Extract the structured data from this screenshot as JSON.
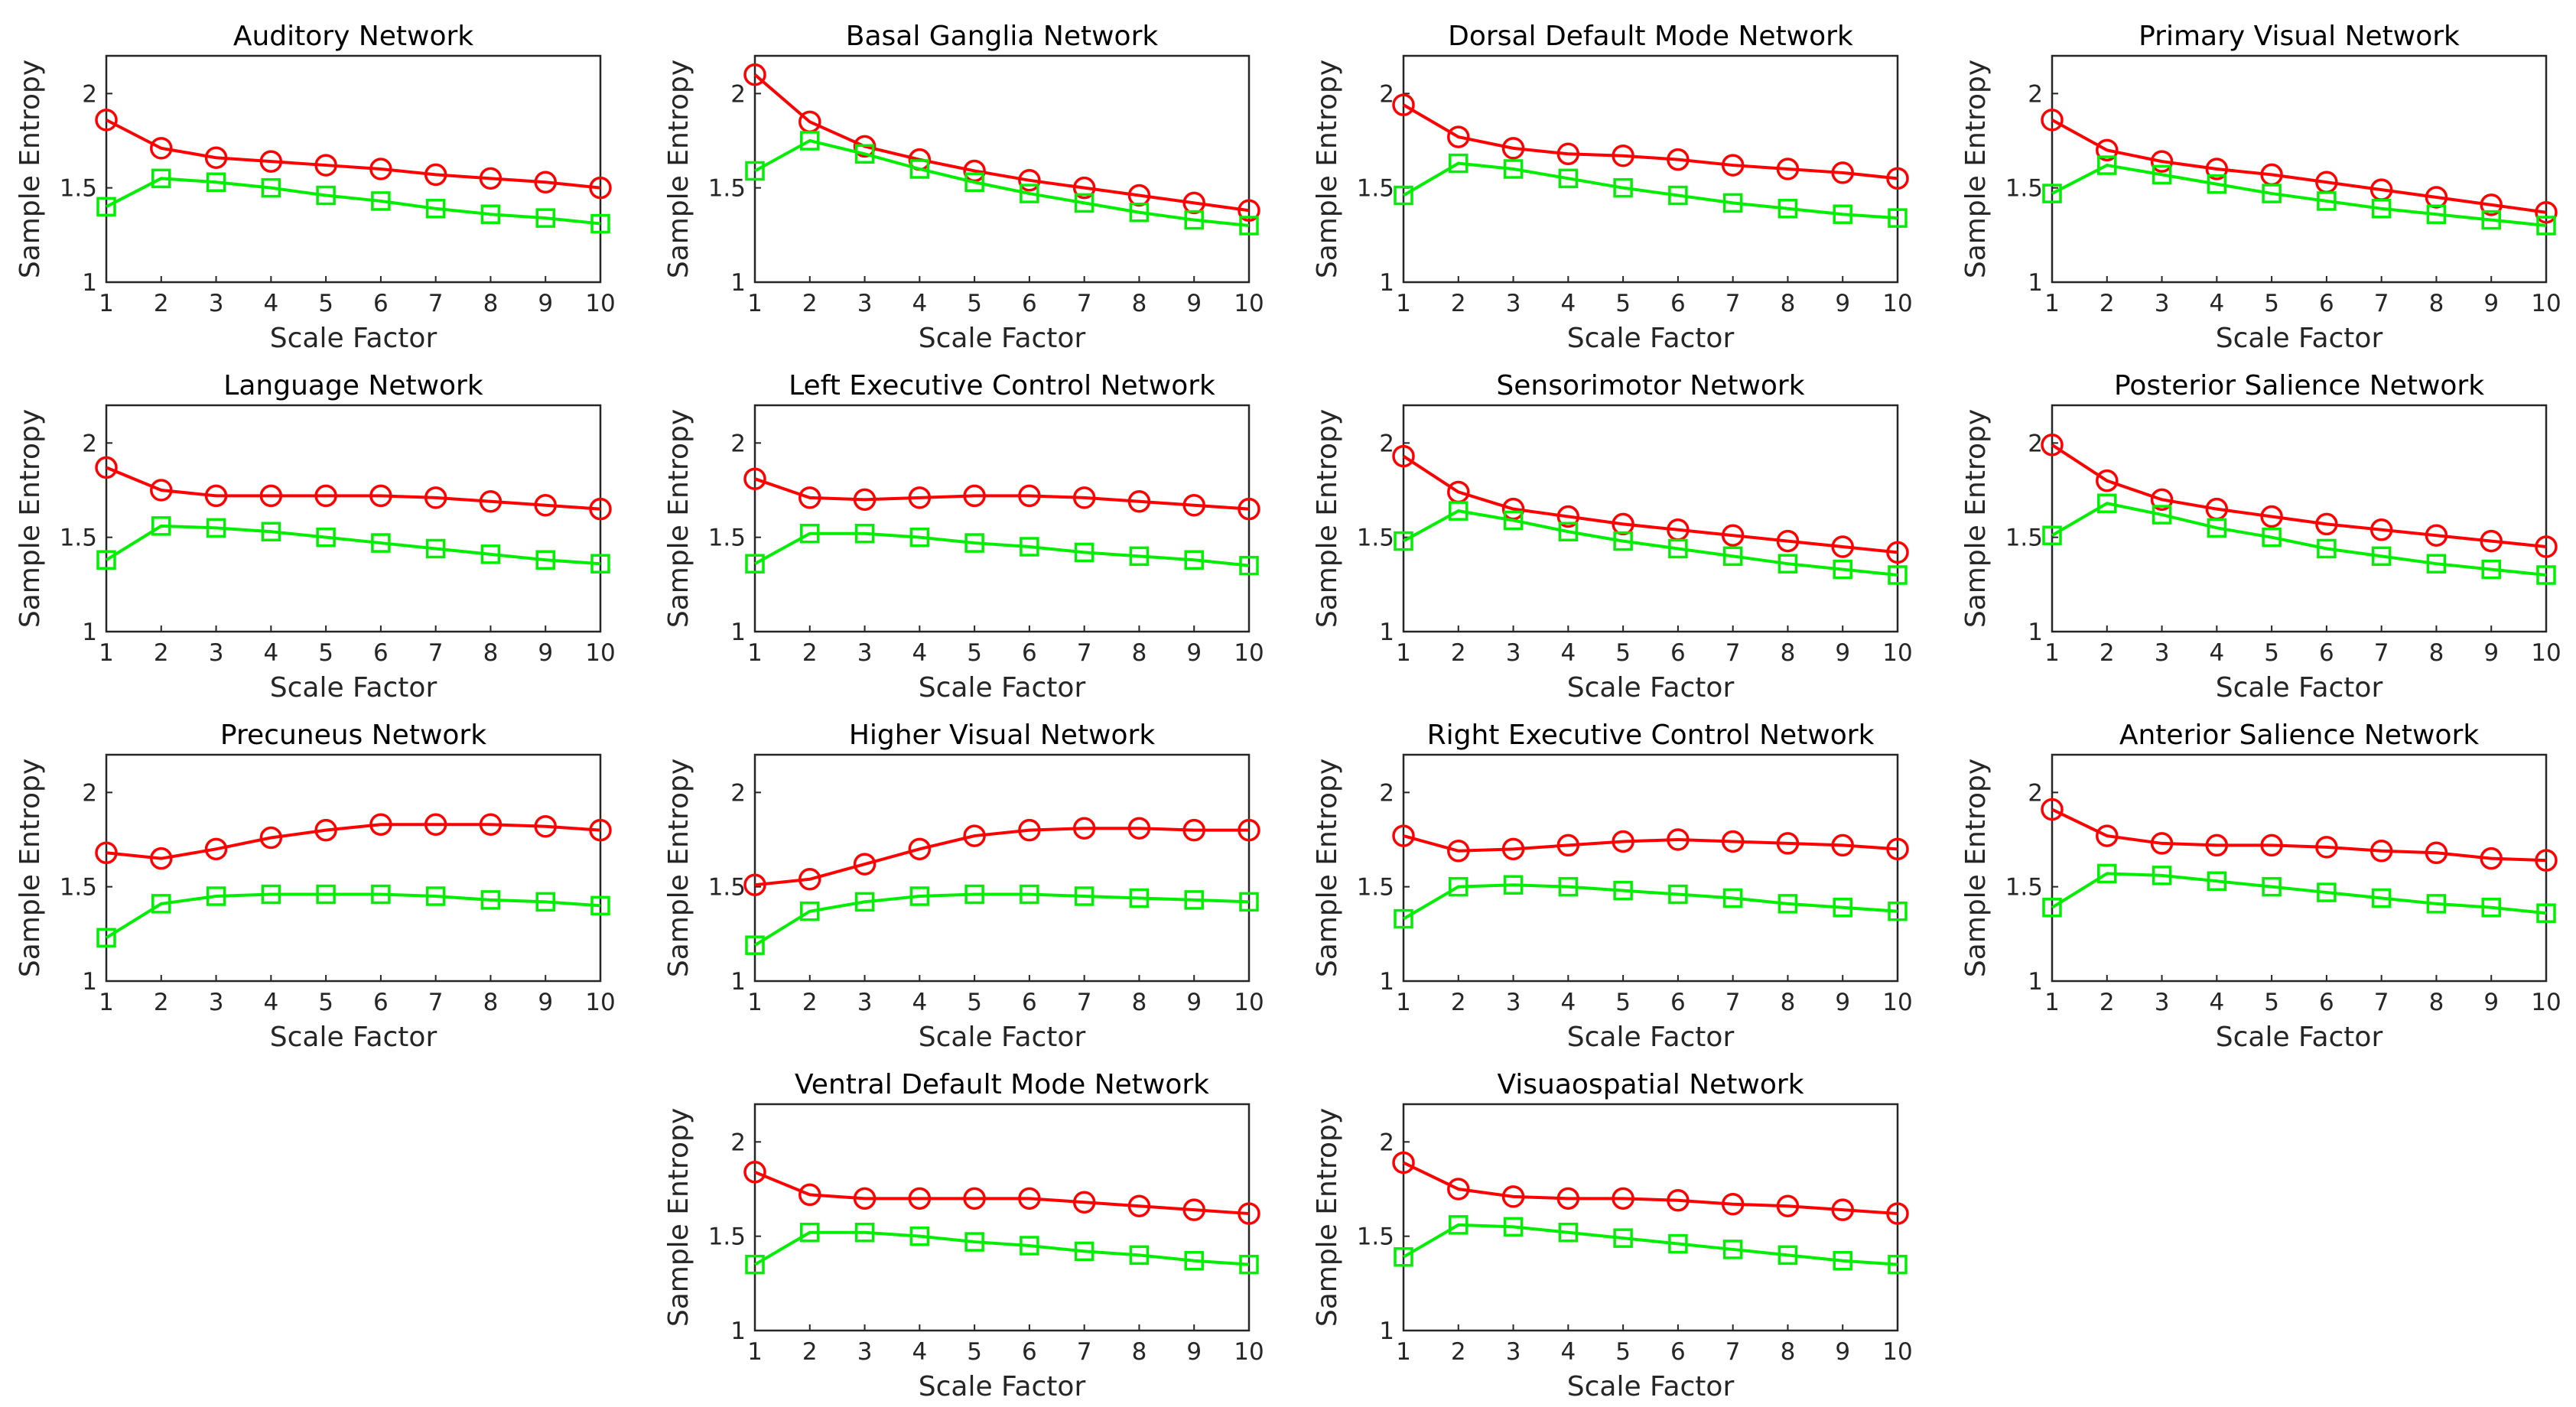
{
  "chart_data": [
    {
      "type": "line",
      "title": "Auditory Network",
      "xlabel": "Scale Factor",
      "ylabel": "Sample Entropy",
      "x": [
        1,
        2,
        3,
        4,
        5,
        6,
        7,
        8,
        9,
        10
      ],
      "xlim": [
        1,
        10
      ],
      "ylim": [
        1,
        2.2
      ],
      "yticks": [
        1,
        1.5,
        2
      ],
      "series": [
        {
          "name": "red circles",
          "color": "#ff0000",
          "marker": "circle",
          "values": [
            1.86,
            1.71,
            1.66,
            1.64,
            1.62,
            1.6,
            1.57,
            1.55,
            1.53,
            1.5
          ]
        },
        {
          "name": "green squares",
          "color": "#00ee00",
          "marker": "square",
          "values": [
            1.4,
            1.55,
            1.53,
            1.5,
            1.46,
            1.43,
            1.39,
            1.36,
            1.34,
            1.31
          ]
        }
      ]
    },
    {
      "type": "line",
      "title": "Basal Ganglia Network",
      "xlabel": "Scale Factor",
      "ylabel": "Sample Entropy",
      "x": [
        1,
        2,
        3,
        4,
        5,
        6,
        7,
        8,
        9,
        10
      ],
      "xlim": [
        1,
        10
      ],
      "ylim": [
        1,
        2.2
      ],
      "yticks": [
        1,
        1.5,
        2
      ],
      "series": [
        {
          "name": "red circles",
          "color": "#ff0000",
          "marker": "circle",
          "values": [
            2.1,
            1.85,
            1.72,
            1.65,
            1.59,
            1.54,
            1.5,
            1.46,
            1.42,
            1.38
          ]
        },
        {
          "name": "green squares",
          "color": "#00ee00",
          "marker": "square",
          "values": [
            1.59,
            1.75,
            1.68,
            1.6,
            1.53,
            1.47,
            1.42,
            1.37,
            1.33,
            1.3
          ]
        }
      ]
    },
    {
      "type": "line",
      "title": "Dorsal Default Mode Network",
      "xlabel": "Scale Factor",
      "ylabel": "Sample Entropy",
      "x": [
        1,
        2,
        3,
        4,
        5,
        6,
        7,
        8,
        9,
        10
      ],
      "xlim": [
        1,
        10
      ],
      "ylim": [
        1,
        2.2
      ],
      "yticks": [
        1,
        1.5,
        2
      ],
      "series": [
        {
          "name": "red circles",
          "color": "#ff0000",
          "marker": "circle",
          "values": [
            1.94,
            1.77,
            1.71,
            1.68,
            1.67,
            1.65,
            1.62,
            1.6,
            1.58,
            1.55
          ]
        },
        {
          "name": "green squares",
          "color": "#00ee00",
          "marker": "square",
          "values": [
            1.46,
            1.63,
            1.6,
            1.55,
            1.5,
            1.46,
            1.42,
            1.39,
            1.36,
            1.34
          ]
        }
      ]
    },
    {
      "type": "line",
      "title": "Primary Visual Network",
      "xlabel": "Scale Factor",
      "ylabel": "Sample Entropy",
      "x": [
        1,
        2,
        3,
        4,
        5,
        6,
        7,
        8,
        9,
        10
      ],
      "xlim": [
        1,
        10
      ],
      "ylim": [
        1,
        2.2
      ],
      "yticks": [
        1,
        1.5,
        2
      ],
      "series": [
        {
          "name": "red circles",
          "color": "#ff0000",
          "marker": "circle",
          "values": [
            1.86,
            1.7,
            1.64,
            1.6,
            1.57,
            1.53,
            1.49,
            1.45,
            1.41,
            1.37
          ]
        },
        {
          "name": "green squares",
          "color": "#00ee00",
          "marker": "square",
          "values": [
            1.47,
            1.62,
            1.57,
            1.52,
            1.47,
            1.43,
            1.39,
            1.36,
            1.33,
            1.3
          ]
        }
      ]
    },
    {
      "type": "line",
      "title": "Language Network",
      "xlabel": "Scale Factor",
      "ylabel": "Sample Entropy",
      "x": [
        1,
        2,
        3,
        4,
        5,
        6,
        7,
        8,
        9,
        10
      ],
      "xlim": [
        1,
        10
      ],
      "ylim": [
        1,
        2.2
      ],
      "yticks": [
        1,
        1.5,
        2
      ],
      "series": [
        {
          "name": "red circles",
          "color": "#ff0000",
          "marker": "circle",
          "values": [
            1.87,
            1.75,
            1.72,
            1.72,
            1.72,
            1.72,
            1.71,
            1.69,
            1.67,
            1.65
          ]
        },
        {
          "name": "green squares",
          "color": "#00ee00",
          "marker": "square",
          "values": [
            1.38,
            1.56,
            1.55,
            1.53,
            1.5,
            1.47,
            1.44,
            1.41,
            1.38,
            1.36
          ]
        }
      ]
    },
    {
      "type": "line",
      "title": "Left Executive Control Network",
      "xlabel": "Scale Factor",
      "ylabel": "Sample Entropy",
      "x": [
        1,
        2,
        3,
        4,
        5,
        6,
        7,
        8,
        9,
        10
      ],
      "xlim": [
        1,
        10
      ],
      "ylim": [
        1,
        2.2
      ],
      "yticks": [
        1,
        1.5,
        2
      ],
      "series": [
        {
          "name": "red circles",
          "color": "#ff0000",
          "marker": "circle",
          "values": [
            1.81,
            1.71,
            1.7,
            1.71,
            1.72,
            1.72,
            1.71,
            1.69,
            1.67,
            1.65
          ]
        },
        {
          "name": "green squares",
          "color": "#00ee00",
          "marker": "square",
          "values": [
            1.36,
            1.52,
            1.52,
            1.5,
            1.47,
            1.45,
            1.42,
            1.4,
            1.38,
            1.35
          ]
        }
      ]
    },
    {
      "type": "line",
      "title": "Sensorimotor Network",
      "xlabel": "Scale Factor",
      "ylabel": "Sample Entropy",
      "x": [
        1,
        2,
        3,
        4,
        5,
        6,
        7,
        8,
        9,
        10
      ],
      "xlim": [
        1,
        10
      ],
      "ylim": [
        1,
        2.2
      ],
      "yticks": [
        1,
        1.5,
        2
      ],
      "series": [
        {
          "name": "red circles",
          "color": "#ff0000",
          "marker": "circle",
          "values": [
            1.93,
            1.74,
            1.65,
            1.61,
            1.57,
            1.54,
            1.51,
            1.48,
            1.45,
            1.42
          ]
        },
        {
          "name": "green squares",
          "color": "#00ee00",
          "marker": "square",
          "values": [
            1.48,
            1.64,
            1.59,
            1.53,
            1.48,
            1.44,
            1.4,
            1.36,
            1.33,
            1.3
          ]
        }
      ]
    },
    {
      "type": "line",
      "title": "Posterior Salience Network",
      "xlabel": "Scale Factor",
      "ylabel": "Sample Entropy",
      "x": [
        1,
        2,
        3,
        4,
        5,
        6,
        7,
        8,
        9,
        10
      ],
      "xlim": [
        1,
        10
      ],
      "ylim": [
        1,
        2.2
      ],
      "yticks": [
        1,
        1.5,
        2
      ],
      "series": [
        {
          "name": "red circles",
          "color": "#ff0000",
          "marker": "circle",
          "values": [
            1.99,
            1.8,
            1.7,
            1.65,
            1.61,
            1.57,
            1.54,
            1.51,
            1.48,
            1.45
          ]
        },
        {
          "name": "green squares",
          "color": "#00ee00",
          "marker": "square",
          "values": [
            1.51,
            1.68,
            1.62,
            1.55,
            1.5,
            1.44,
            1.4,
            1.36,
            1.33,
            1.3
          ]
        }
      ]
    },
    {
      "type": "line",
      "title": "Precuneus Network",
      "xlabel": "Scale Factor",
      "ylabel": "Sample Entropy",
      "x": [
        1,
        2,
        3,
        4,
        5,
        6,
        7,
        8,
        9,
        10
      ],
      "xlim": [
        1,
        10
      ],
      "ylim": [
        1,
        2.2
      ],
      "yticks": [
        1,
        1.5,
        2
      ],
      "series": [
        {
          "name": "red circles",
          "color": "#ff0000",
          "marker": "circle",
          "values": [
            1.68,
            1.65,
            1.7,
            1.76,
            1.8,
            1.83,
            1.83,
            1.83,
            1.82,
            1.8
          ]
        },
        {
          "name": "green squares",
          "color": "#00ee00",
          "marker": "square",
          "values": [
            1.23,
            1.41,
            1.45,
            1.46,
            1.46,
            1.46,
            1.45,
            1.43,
            1.42,
            1.4
          ]
        }
      ]
    },
    {
      "type": "line",
      "title": "Higher Visual Network",
      "xlabel": "Scale Factor",
      "ylabel": "Sample Entropy",
      "x": [
        1,
        2,
        3,
        4,
        5,
        6,
        7,
        8,
        9,
        10
      ],
      "xlim": [
        1,
        10
      ],
      "ylim": [
        1,
        2.2
      ],
      "yticks": [
        1,
        1.5,
        2
      ],
      "series": [
        {
          "name": "red circles",
          "color": "#ff0000",
          "marker": "circle",
          "values": [
            1.51,
            1.54,
            1.62,
            1.7,
            1.77,
            1.8,
            1.81,
            1.81,
            1.8,
            1.8
          ]
        },
        {
          "name": "green squares",
          "color": "#00ee00",
          "marker": "square",
          "values": [
            1.19,
            1.37,
            1.42,
            1.45,
            1.46,
            1.46,
            1.45,
            1.44,
            1.43,
            1.42
          ]
        }
      ]
    },
    {
      "type": "line",
      "title": "Right Executive Control Network",
      "xlabel": "Scale Factor",
      "ylabel": "Sample Entropy",
      "x": [
        1,
        2,
        3,
        4,
        5,
        6,
        7,
        8,
        9,
        10
      ],
      "xlim": [
        1,
        10
      ],
      "ylim": [
        1,
        2.2
      ],
      "yticks": [
        1,
        1.5,
        2
      ],
      "series": [
        {
          "name": "red circles",
          "color": "#ff0000",
          "marker": "circle",
          "values": [
            1.77,
            1.69,
            1.7,
            1.72,
            1.74,
            1.75,
            1.74,
            1.73,
            1.72,
            1.7
          ]
        },
        {
          "name": "green squares",
          "color": "#00ee00",
          "marker": "square",
          "values": [
            1.33,
            1.5,
            1.51,
            1.5,
            1.48,
            1.46,
            1.44,
            1.41,
            1.39,
            1.37
          ]
        }
      ]
    },
    {
      "type": "line",
      "title": "Anterior Salience Network",
      "xlabel": "Scale Factor",
      "ylabel": "Sample Entropy",
      "x": [
        1,
        2,
        3,
        4,
        5,
        6,
        7,
        8,
        9,
        10
      ],
      "xlim": [
        1,
        10
      ],
      "ylim": [
        1,
        2.2
      ],
      "yticks": [
        1,
        1.5,
        2
      ],
      "series": [
        {
          "name": "red circles",
          "color": "#ff0000",
          "marker": "circle",
          "values": [
            1.91,
            1.77,
            1.73,
            1.72,
            1.72,
            1.71,
            1.69,
            1.68,
            1.65,
            1.64
          ]
        },
        {
          "name": "green squares",
          "color": "#00ee00",
          "marker": "square",
          "values": [
            1.39,
            1.57,
            1.56,
            1.53,
            1.5,
            1.47,
            1.44,
            1.41,
            1.39,
            1.36
          ]
        }
      ]
    },
    {
      "type": "line",
      "title": "Ventral Default Mode Network",
      "xlabel": "Scale Factor",
      "ylabel": "Sample Entropy",
      "x": [
        1,
        2,
        3,
        4,
        5,
        6,
        7,
        8,
        9,
        10
      ],
      "xlim": [
        1,
        10
      ],
      "ylim": [
        1,
        2.2
      ],
      "yticks": [
        1,
        1.5,
        2
      ],
      "series": [
        {
          "name": "red circles",
          "color": "#ff0000",
          "marker": "circle",
          "values": [
            1.84,
            1.72,
            1.7,
            1.7,
            1.7,
            1.7,
            1.68,
            1.66,
            1.64,
            1.62
          ]
        },
        {
          "name": "green squares",
          "color": "#00ee00",
          "marker": "square",
          "values": [
            1.35,
            1.52,
            1.52,
            1.5,
            1.47,
            1.45,
            1.42,
            1.4,
            1.37,
            1.35
          ]
        }
      ]
    },
    {
      "type": "line",
      "title": "Visuaospatial Network",
      "xlabel": "Scale Factor",
      "ylabel": "Sample Entropy",
      "x": [
        1,
        2,
        3,
        4,
        5,
        6,
        7,
        8,
        9,
        10
      ],
      "xlim": [
        1,
        10
      ],
      "ylim": [
        1,
        2.2
      ],
      "yticks": [
        1,
        1.5,
        2
      ],
      "series": [
        {
          "name": "red circles",
          "color": "#ff0000",
          "marker": "circle",
          "values": [
            1.89,
            1.75,
            1.71,
            1.7,
            1.7,
            1.69,
            1.67,
            1.66,
            1.64,
            1.62
          ]
        },
        {
          "name": "green squares",
          "color": "#00ee00",
          "marker": "square",
          "values": [
            1.39,
            1.56,
            1.55,
            1.52,
            1.49,
            1.46,
            1.43,
            1.4,
            1.37,
            1.35
          ]
        }
      ]
    }
  ]
}
